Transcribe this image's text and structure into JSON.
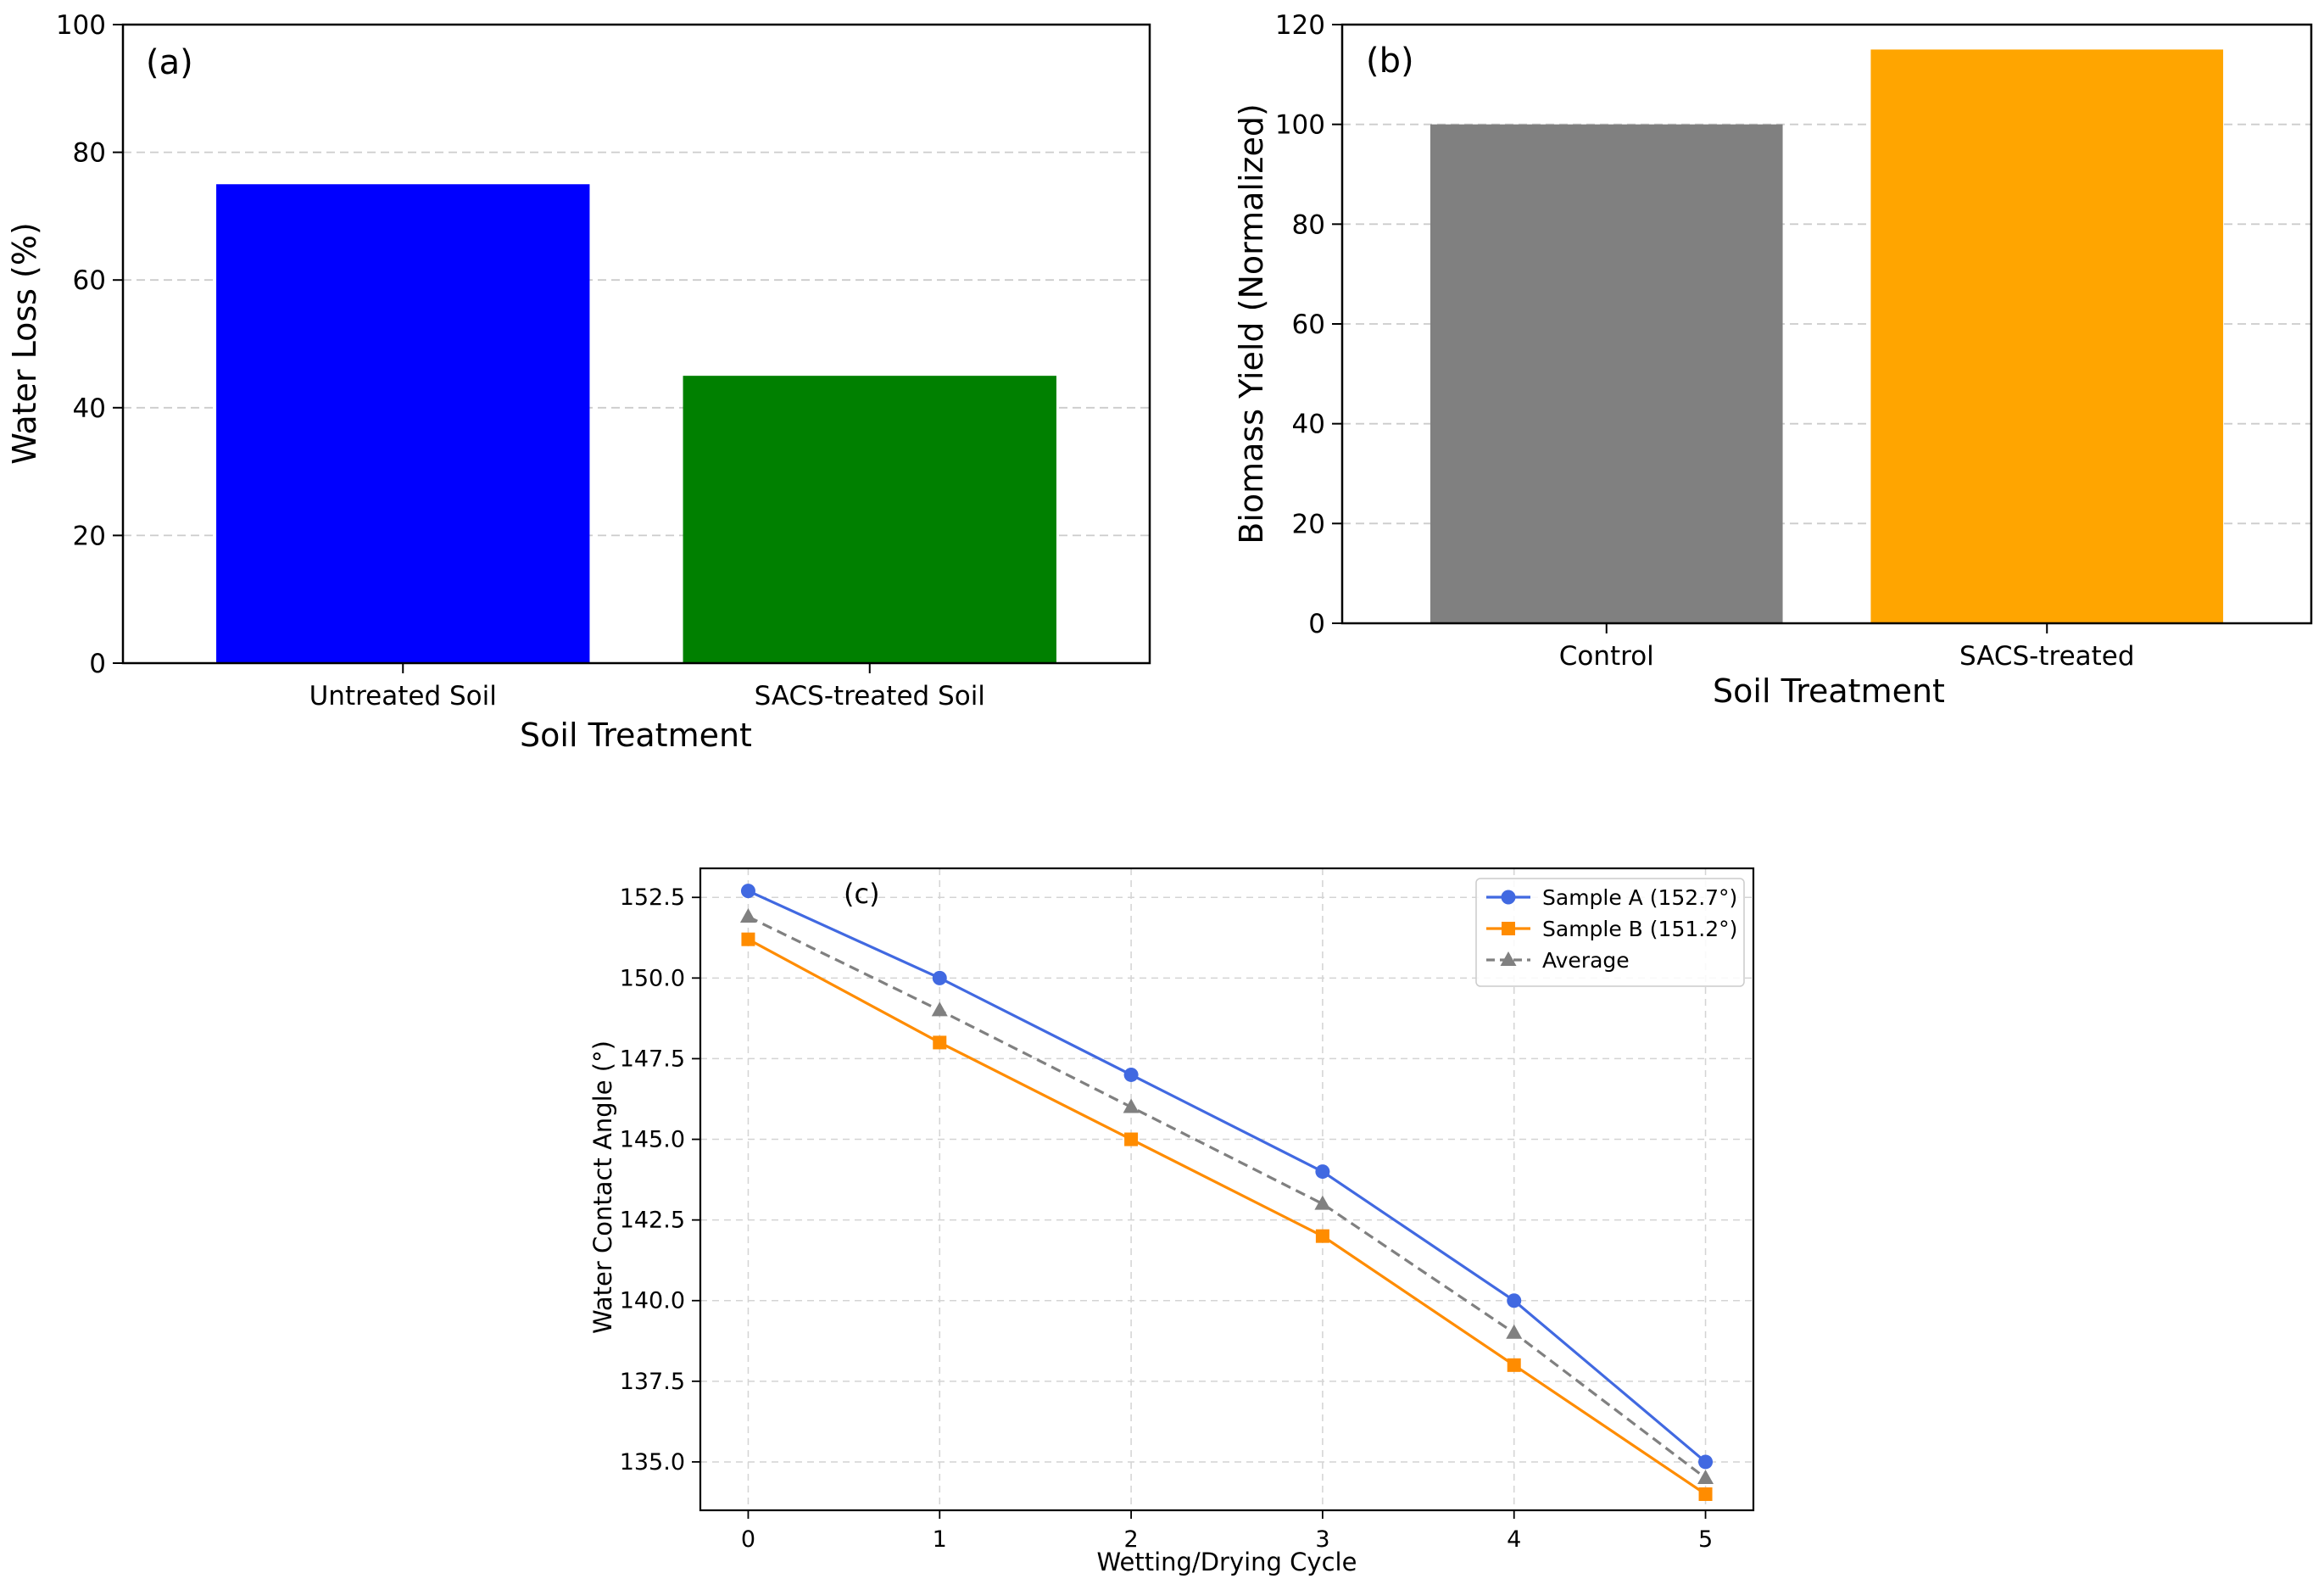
{
  "chart_data": [
    {
      "type": "bar",
      "panel_label": "(a)",
      "categories": [
        "Untreated Soil",
        "SACS-treated Soil"
      ],
      "values": [
        75,
        45
      ],
      "colors": [
        "#0000ff",
        "#008000"
      ],
      "xlabel": "Soil Treatment",
      "ylabel": "Water Loss (%)",
      "ylim": [
        0,
        100
      ],
      "yticks": [
        "0",
        "20",
        "40",
        "60",
        "80",
        "100"
      ],
      "grid": "y-dashed"
    },
    {
      "type": "bar",
      "panel_label": "(b)",
      "categories": [
        "Control",
        "SACS-treated"
      ],
      "values": [
        100,
        115
      ],
      "colors": [
        "#808080",
        "#ffa500"
      ],
      "xlabel": "Soil Treatment",
      "ylabel": "Biomass Yield (Normalized)",
      "ylim": [
        0,
        120
      ],
      "yticks": [
        "0",
        "20",
        "40",
        "60",
        "80",
        "100",
        "120"
      ],
      "grid": "y-dashed"
    },
    {
      "type": "line",
      "panel_label": "(c)",
      "x": [
        0,
        1,
        2,
        3,
        4,
        5
      ],
      "xticks": [
        "0",
        "1",
        "2",
        "3",
        "4",
        "5"
      ],
      "xlim": [
        -0.25,
        5.25
      ],
      "ylim": [
        133.5,
        153.4
      ],
      "yticks": [
        "135.0",
        "137.5",
        "140.0",
        "142.5",
        "145.0",
        "147.5",
        "150.0",
        "152.5"
      ],
      "xlabel": "Wetting/Drying Cycle",
      "ylabel": "Water Contact Angle (°)",
      "grid": "both-dashed",
      "legend_position": "top-right",
      "series": [
        {
          "name": "Sample A (152.7°)",
          "values": [
            152.7,
            150.0,
            147.0,
            144.0,
            140.0,
            135.0
          ],
          "color": "#4169e1",
          "marker": "circle",
          "linestyle": "solid"
        },
        {
          "name": "Sample B (151.2°)",
          "values": [
            151.2,
            148.0,
            145.0,
            142.0,
            138.0,
            134.0
          ],
          "color": "#ff8c00",
          "marker": "square",
          "linestyle": "solid"
        },
        {
          "name": "Average",
          "values": [
            151.9,
            149.0,
            146.0,
            143.0,
            139.0,
            134.5
          ],
          "color": "#808080",
          "marker": "triangle",
          "linestyle": "dashed"
        }
      ]
    }
  ]
}
